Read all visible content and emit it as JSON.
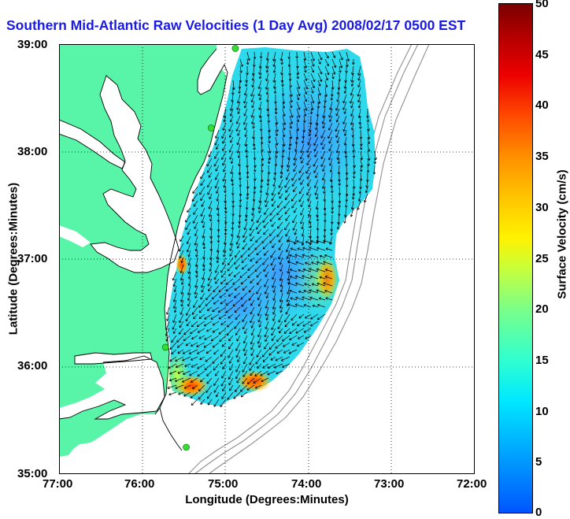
{
  "title": "Southern Mid-Atlantic Raw Velocities (1 Day Avg) 2008/02/17 0500 EST",
  "axes": {
    "xlabel": "Longitude (Degrees:Minutes)",
    "ylabel": "Latitude (Degrees:Minutes)",
    "x_ticks": [
      "77:00",
      "76:00",
      "75:00",
      "74:00",
      "73:00",
      "72:00"
    ],
    "y_ticks": [
      "39:00",
      "38:00",
      "37:00",
      "36:00",
      "35:00"
    ],
    "xlim_deg": [
      -77,
      -72
    ],
    "ylim_deg": [
      35,
      39
    ],
    "grid": true
  },
  "colorbar": {
    "label": "Surface Velocity (cm/s)",
    "ticks": [
      "50",
      "45",
      "40",
      "35",
      "30",
      "25",
      "20",
      "15",
      "10",
      "5",
      "0"
    ],
    "range": [
      0,
      50
    ],
    "colormap": "jet"
  },
  "colors": {
    "land": "#58f5a8",
    "title": "#1a1ae6",
    "station": "#33dd33",
    "arrow": "#000000",
    "bathymetry": "#909090"
  },
  "stations": [
    {
      "lon": -74.88,
      "lat": 38.96
    },
    {
      "lon": -75.17,
      "lat": 38.22
    },
    {
      "lon": -75.72,
      "lat": 36.18
    },
    {
      "lon": -75.47,
      "lat": 35.25
    }
  ]
}
